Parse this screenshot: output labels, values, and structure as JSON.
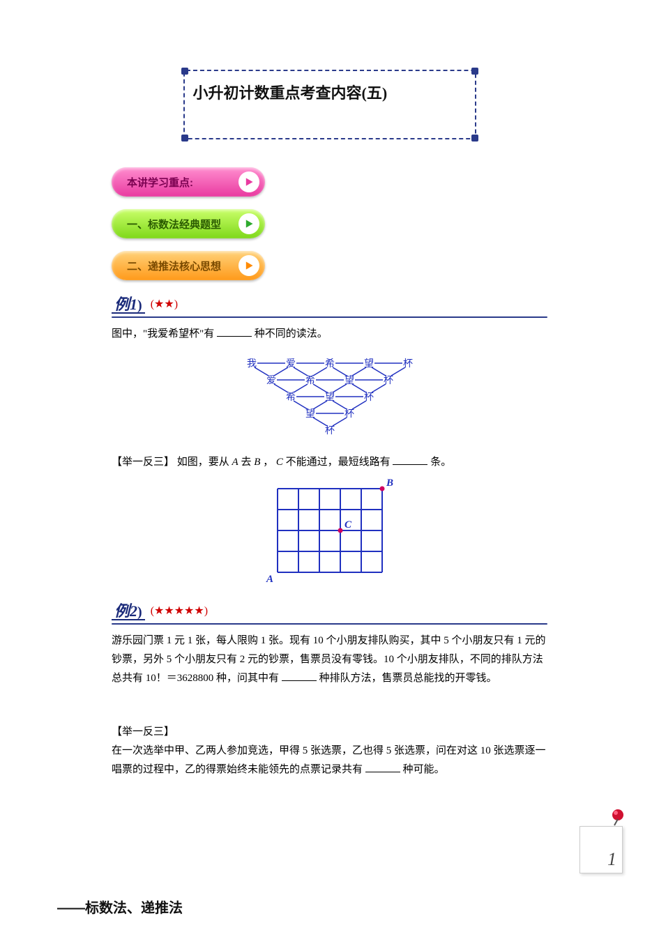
{
  "title": "小升初计数重点考查内容(五)",
  "pills": [
    {
      "label": "本讲学习重点:",
      "style": "pink"
    },
    {
      "label": "一、标数法经典题型",
      "style": "green"
    },
    {
      "label": "二、递推法核心思想",
      "style": "orange"
    }
  ],
  "example1": {
    "badge": "例1",
    "stars": "(★★)",
    "text_prefix": "图中，\"我爱希望杯\"有",
    "text_suffix": "种不同的读法。",
    "diagram": {
      "type": "text-lattice",
      "rows": [
        [
          "我",
          "爱",
          "希",
          "望",
          "杯"
        ],
        [
          "爱",
          "希",
          "望",
          "杯"
        ],
        [
          "希",
          "望",
          "杯"
        ],
        [
          "望",
          "杯"
        ],
        [
          "杯"
        ]
      ],
      "node_color": "#2030c0",
      "edge_color": "#2030c0",
      "fontsize": 14
    },
    "sub": {
      "label": "【举一反三】",
      "text_prefix": "如图，要从 ",
      "var1": "A",
      "text_mid1": " 去 ",
      "var2": "B",
      "text_mid2": "，",
      "var3": "C",
      "text_mid3": " 不能通过，最短线路有",
      "text_suffix": "条。",
      "grid": {
        "type": "grid",
        "cols": 5,
        "rows": 4,
        "line_color": "#2030c0",
        "line_width": 2,
        "labels": {
          "A": {
            "col": 0,
            "row": 4,
            "pos": "bl",
            "color": "#2030c0"
          },
          "B": {
            "col": 5,
            "row": 0,
            "pos": "tr",
            "color": "#2030c0",
            "dot_color": "#d00060"
          },
          "C": {
            "col": 3,
            "row": 2,
            "pos": "tr",
            "color": "#2030c0",
            "dot_color": "#d00060"
          }
        }
      }
    }
  },
  "example2": {
    "badge": "例2",
    "stars": "(★★★★★)",
    "text": "游乐园门票 1 元 1 张，每人限购 1 张。现有 10 个小朋友排队购买，其中 5 个小朋友只有 1 元的钞票，另外 5 个小朋友只有 2 元的钞票，售票员没有零钱。10 个小朋友排队，不同的排队方法总共有 10！＝3628800 种，问其中有",
    "text_suffix": "种排队方法，售票员总能找的开零钱。",
    "sub": {
      "label": "【举一反三】",
      "text": "在一次选举中甲、乙两人参加竞选，甲得 5 张选票，乙也得 5 张选票，问在对这 10 张选票逐一唱票的过程中，乙的得票始终未能领先的点票记录共有",
      "text_suffix": "种可能。"
    }
  },
  "page_number": "1",
  "footer": "——标数法、递推法",
  "colors": {
    "dash_border": "#2a3a8a",
    "blue": "#2030c0",
    "red": "#d00000",
    "pink_from": "#ff8ecf",
    "pink_to": "#e93aa0",
    "green_from": "#caff6a",
    "green_to": "#7fd81a",
    "orange_from": "#ffd27a",
    "orange_to": "#ff9a1a"
  }
}
